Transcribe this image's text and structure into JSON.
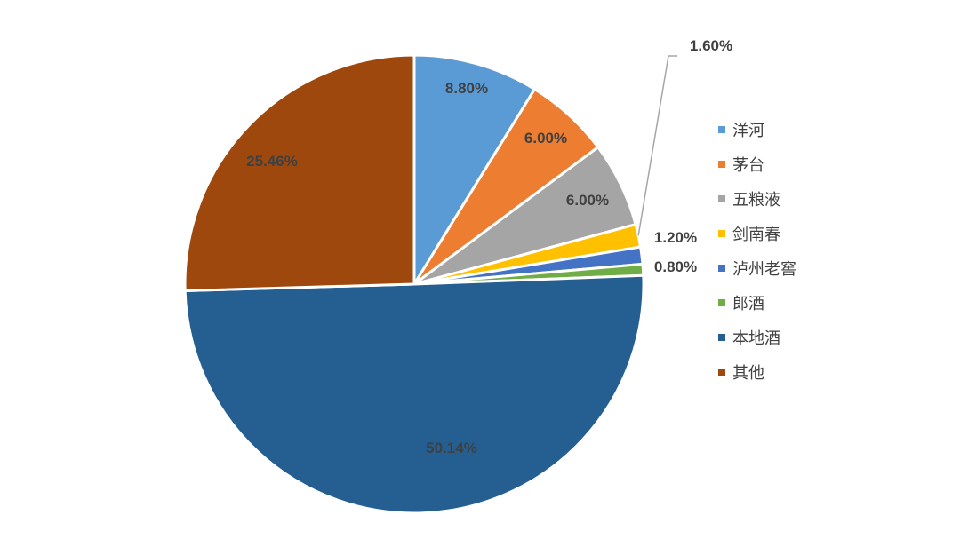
{
  "chart_data": {
    "type": "pie",
    "title": "",
    "slices": [
      {
        "name": "洋河",
        "value": 8.8,
        "label": "8.80%",
        "color": "#5B9BD5",
        "label_color": "#404040"
      },
      {
        "name": "茅台",
        "value": 6.0,
        "label": "6.00%",
        "color": "#ED7D31",
        "label_color": "#404040"
      },
      {
        "name": "五粮液",
        "value": 6.0,
        "label": "6.00%",
        "color": "#A5A5A5",
        "label_color": "#404040"
      },
      {
        "name": "剑南春",
        "value": 1.6,
        "label": "1.60%",
        "color": "#FFC000",
        "label_color": "#404040"
      },
      {
        "name": "泸州老窖",
        "value": 1.2,
        "label": "1.20%",
        "color": "#4472C4",
        "label_color": "#404040"
      },
      {
        "name": "郎酒",
        "value": 0.8,
        "label": "0.80%",
        "color": "#70AD47",
        "label_color": "#404040"
      },
      {
        "name": "本地酒",
        "value": 50.14,
        "label": "50.14%",
        "color": "#255E91",
        "label_color": "#404040"
      },
      {
        "name": "其他",
        "value": 25.46,
        "label": "25.46%",
        "color": "#9E480E",
        "label_color": "#404040"
      }
    ],
    "legend_position": "right"
  }
}
